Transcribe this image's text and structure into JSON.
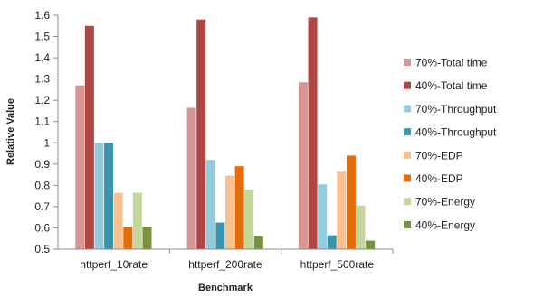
{
  "chart_data": {
    "type": "bar",
    "title": "",
    "xlabel": "Benchmark",
    "ylabel": "Relative Value",
    "ylim": [
      0.5,
      1.6
    ],
    "yticks": [
      0.5,
      0.6,
      0.7,
      0.8,
      0.9,
      1,
      1.1,
      1.2,
      1.3,
      1.4,
      1.5,
      1.6
    ],
    "categories": [
      "httperf_10rate",
      "httperf_200rate",
      "httperf_500rate"
    ],
    "grid": false,
    "legend_position": "right",
    "series": [
      {
        "name": "70%-Total time",
        "color": "#D99594",
        "values": [
          1.27,
          1.165,
          1.285
        ]
      },
      {
        "name": "40%-Total time",
        "color": "#B04644",
        "values": [
          1.55,
          1.58,
          1.59
        ]
      },
      {
        "name": "70%-Throughput",
        "color": "#93CDDD",
        "values": [
          1.0,
          0.92,
          0.805
        ]
      },
      {
        "name": "40%-Throughput",
        "color": "#3C93AE",
        "values": [
          1.0,
          0.625,
          0.565
        ]
      },
      {
        "name": "70%-EDP",
        "color": "#FAC090",
        "values": [
          0.765,
          0.845,
          0.865
        ]
      },
      {
        "name": "40%-EDP",
        "color": "#E46C0A",
        "values": [
          0.605,
          0.89,
          0.94
        ]
      },
      {
        "name": "70%-Energy",
        "color": "#C3D69B",
        "values": [
          0.765,
          0.78,
          0.705
        ]
      },
      {
        "name": "40%-Energy",
        "color": "#76923C",
        "values": [
          0.605,
          0.56,
          0.54
        ]
      }
    ]
  }
}
